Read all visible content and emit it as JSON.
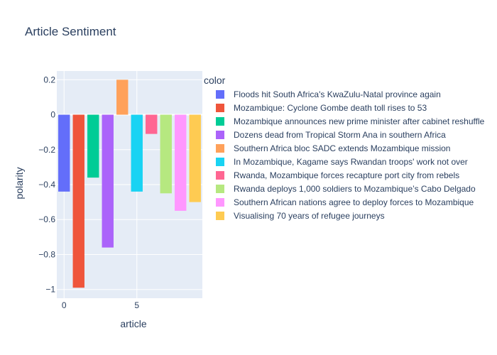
{
  "colors": {
    "plot_bg": "#e5ecf6",
    "paper_bg": "#ffffff",
    "grid": "#ffffff",
    "text": "#2a3f5f"
  },
  "chart_data": {
    "type": "bar",
    "title": "Article Sentiment",
    "xlabel": "article",
    "ylabel": "polarity",
    "xlim": [
      -0.5,
      9.5
    ],
    "ylim": [
      -1.05,
      0.25
    ],
    "x_ticks": [
      0,
      5
    ],
    "y_ticks": [
      0.2,
      0,
      -0.2,
      -0.4,
      -0.6,
      -0.8,
      -1
    ],
    "y_tick_labels": [
      "0.2",
      "0",
      "−0.2",
      "−0.4",
      "−0.6",
      "−0.8",
      "−1"
    ],
    "grid": true,
    "legend_title": "color",
    "legend_position": "right",
    "series": [
      {
        "name": "Floods hit South Africa's KwaZulu-Natal province again",
        "x": 0,
        "value": -0.44,
        "color": "#636efa"
      },
      {
        "name": "Mozambique: Cyclone Gombe death toll rises to 53",
        "x": 1,
        "value": -0.99,
        "color": "#ef553b"
      },
      {
        "name": "Mozambique announces new prime minister after cabinet reshuffle",
        "x": 2,
        "value": -0.36,
        "color": "#00cc96"
      },
      {
        "name": "Dozens dead from Tropical Storm Ana in southern Africa",
        "x": 3,
        "value": -0.76,
        "color": "#ab63fa"
      },
      {
        "name": "Southern Africa bloc SADC extends Mozambique mission",
        "x": 4,
        "value": 0.2,
        "color": "#ffa15a"
      },
      {
        "name": "In Mozambique, Kagame says Rwandan troops' work not over",
        "x": 5,
        "value": -0.44,
        "color": "#19d3f3"
      },
      {
        "name": "Rwanda, Mozambique forces recapture port city from rebels",
        "x": 6,
        "value": -0.11,
        "color": "#ff6692"
      },
      {
        "name": "Rwanda deploys 1,000 soldiers to Mozambique’s Cabo Delgado",
        "x": 7,
        "value": -0.45,
        "color": "#b6e880"
      },
      {
        "name": "Southern African nations agree to deploy forces to Mozambique",
        "x": 8,
        "value": -0.55,
        "color": "#ff97ff"
      },
      {
        "name": "Visualising 70 years of refugee journeys",
        "x": 9,
        "value": -0.5,
        "color": "#fecb52"
      }
    ]
  }
}
